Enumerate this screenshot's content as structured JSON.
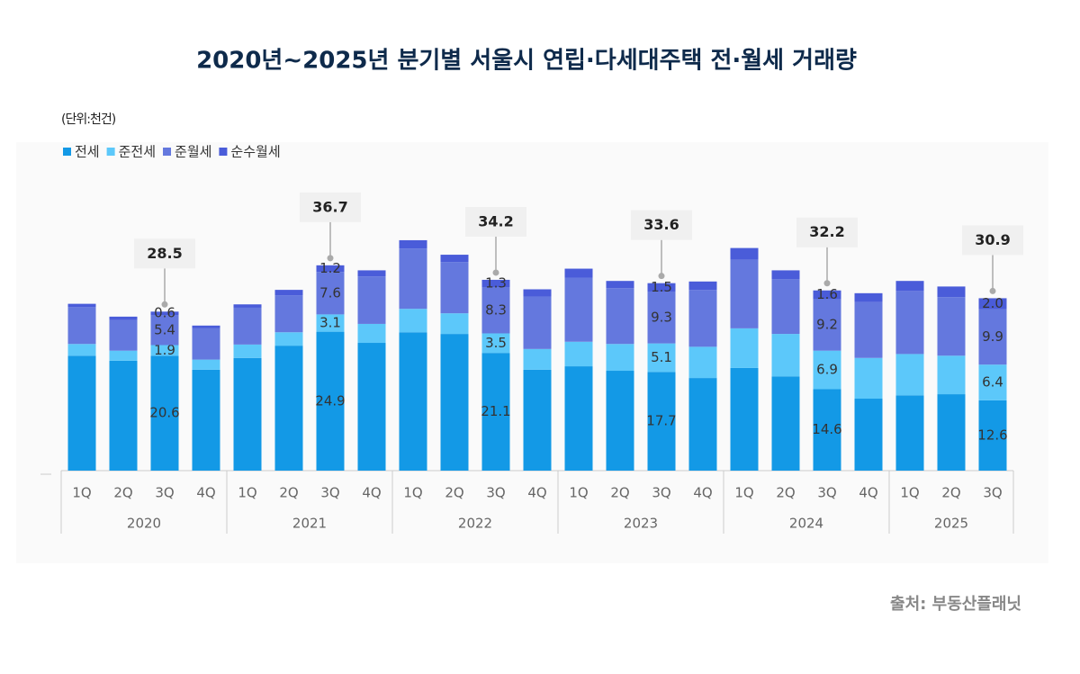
{
  "chart_data": {
    "type": "stacked-bar",
    "title": "2020년~2025년 분기별 서울시 연립·다세대주택 전·월세 거래량",
    "unit": "(단위:천건)",
    "source": "출처: 부동산플래닛",
    "category_groups": [
      {
        "label": "2020",
        "categories": [
          "1Q",
          "2Q",
          "3Q",
          "4Q"
        ]
      },
      {
        "label": "2021",
        "categories": [
          "1Q",
          "2Q",
          "3Q",
          "4Q"
        ]
      },
      {
        "label": "2022",
        "categories": [
          "1Q",
          "2Q",
          "3Q",
          "4Q"
        ]
      },
      {
        "label": "2023",
        "categories": [
          "1Q",
          "2Q",
          "3Q",
          "4Q"
        ]
      },
      {
        "label": "2024",
        "categories": [
          "1Q",
          "2Q",
          "3Q",
          "4Q"
        ]
      },
      {
        "label": "2025",
        "categories": [
          "1Q",
          "2Q",
          "3Q"
        ]
      }
    ],
    "series": [
      {
        "name": "전세",
        "color": "#1399e6",
        "values": [
          20.6,
          19.7,
          20.6,
          18.1,
          20.2,
          22.4,
          24.9,
          22.9,
          24.8,
          24.5,
          21.1,
          18.1,
          18.7,
          17.9,
          17.7,
          16.6,
          18.4,
          16.9,
          14.6,
          12.9,
          13.5,
          13.7,
          12.6
        ],
        "value_labels": [
          null,
          null,
          "20.6",
          null,
          null,
          null,
          "24.9",
          null,
          null,
          null,
          "21.1",
          null,
          null,
          null,
          "17.7",
          null,
          null,
          null,
          "14.6",
          null,
          null,
          null,
          "12.6"
        ]
      },
      {
        "name": "준전세",
        "color": "#5cc8fa",
        "values": [
          2.1,
          1.8,
          1.9,
          1.8,
          2.4,
          2.4,
          3.1,
          3.4,
          4.2,
          3.7,
          3.5,
          3.7,
          4.4,
          4.8,
          5.1,
          5.6,
          7.1,
          7.6,
          6.9,
          7.3,
          7.4,
          6.9,
          6.4
        ],
        "value_labels": [
          null,
          null,
          "1.9",
          null,
          null,
          null,
          "3.1",
          null,
          null,
          null,
          "3.5",
          null,
          null,
          null,
          "5.1",
          null,
          null,
          null,
          "6.9",
          null,
          null,
          null,
          "6.4"
        ]
      },
      {
        "name": "준월세",
        "color": "#6478de",
        "values": [
          6.6,
          5.5,
          5.4,
          5.6,
          6.6,
          6.6,
          7.6,
          8.5,
          10.8,
          9.2,
          8.3,
          9.4,
          11.5,
          10.0,
          9.3,
          10.2,
          12.3,
          9.8,
          9.2,
          10.0,
          11.3,
          10.5,
          9.9
        ],
        "value_labels": [
          null,
          null,
          "5.4",
          null,
          null,
          null,
          "7.6",
          null,
          null,
          null,
          "8.3",
          null,
          null,
          null,
          "9.3",
          null,
          null,
          null,
          "9.2",
          null,
          null,
          null,
          "9.9"
        ]
      },
      {
        "name": "순수월세",
        "color": "#4a5cd9",
        "values": [
          0.6,
          0.6,
          0.6,
          0.5,
          0.6,
          1.0,
          1.2,
          1.1,
          1.5,
          1.3,
          1.3,
          1.3,
          1.6,
          1.3,
          1.5,
          1.5,
          2.1,
          1.6,
          1.6,
          1.6,
          1.8,
          1.9,
          2.0
        ],
        "value_labels": [
          null,
          null,
          "0.6",
          null,
          null,
          null,
          "1.2",
          null,
          null,
          null,
          "1.3",
          null,
          null,
          null,
          "1.5",
          null,
          null,
          null,
          "1.6",
          null,
          null,
          null,
          "2.0"
        ]
      }
    ],
    "totals": [
      null,
      null,
      28.5,
      null,
      null,
      null,
      36.7,
      null,
      null,
      null,
      34.2,
      null,
      null,
      null,
      33.6,
      null,
      null,
      null,
      32.2,
      null,
      null,
      null,
      30.9
    ]
  }
}
